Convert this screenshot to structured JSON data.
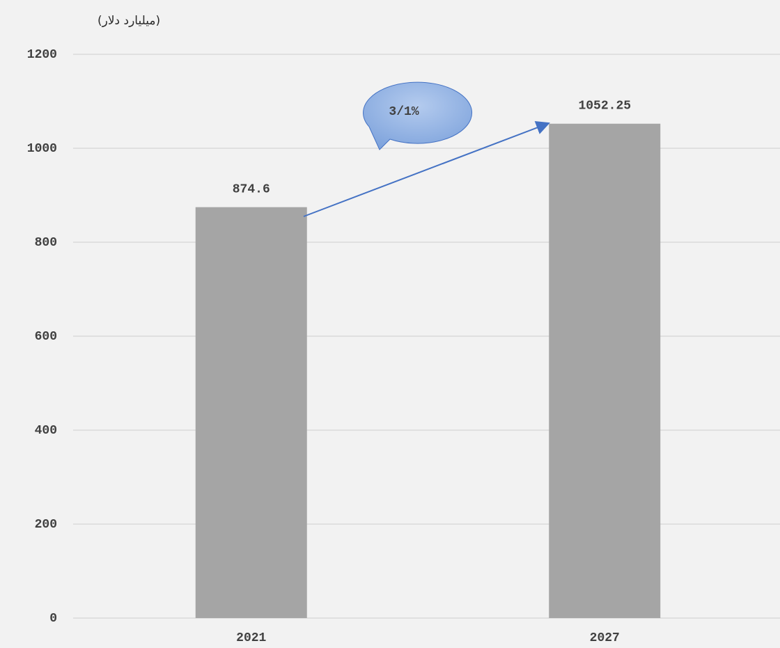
{
  "chart_data": {
    "type": "bar",
    "y_axis_label": "(میلیارد دلار)",
    "annotation": "3/1%",
    "categories": [
      "2021",
      "2027"
    ],
    "values": [
      874.6,
      1052.25
    ],
    "color": "#a5a5a5",
    "ylim": [
      0,
      1200
    ],
    "yticks": [
      0,
      200,
      400,
      600,
      800,
      1000,
      1200
    ],
    "grid": true
  }
}
